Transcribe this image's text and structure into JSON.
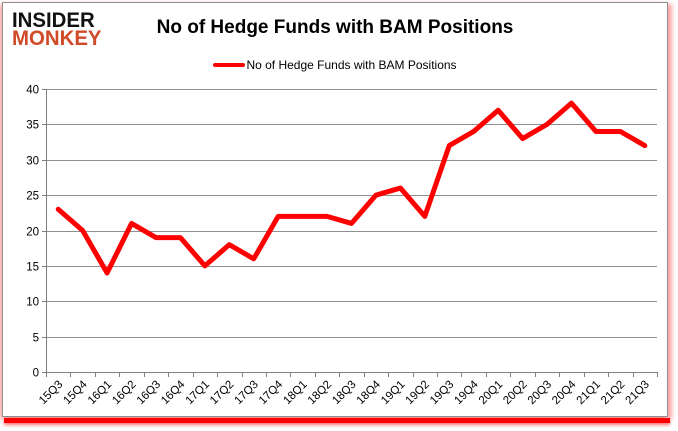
{
  "brand": {
    "line1": "INSIDER",
    "line2": "MONKEY",
    "line2_color": "#d04a28"
  },
  "header": {
    "title": "No of Hedge Funds with BAM Positions"
  },
  "legend": {
    "label": "No of Hedge Funds with BAM Positions",
    "line_color": "#ff0000"
  },
  "chart_data": {
    "type": "line",
    "title": "No of Hedge Funds with BAM Positions",
    "categories": [
      "15Q3",
      "15Q4",
      "16Q1",
      "16Q2",
      "16Q3",
      "16Q4",
      "17Q1",
      "17Q2",
      "17Q3",
      "17Q4",
      "18Q1",
      "18Q2",
      "18Q3",
      "18Q4",
      "19Q1",
      "19Q2",
      "19Q3",
      "19Q4",
      "20Q1",
      "20Q2",
      "20Q3",
      "20Q4",
      "21Q1",
      "21Q2",
      "21Q3"
    ],
    "series": [
      {
        "name": "No of Hedge Funds with BAM Positions",
        "color": "#ff0000",
        "values": [
          23,
          20,
          14,
          21,
          19,
          19,
          15,
          18,
          16,
          22,
          22,
          22,
          21,
          25,
          26,
          22,
          32,
          34,
          37,
          33,
          35,
          38,
          34,
          34,
          32
        ]
      }
    ],
    "xlabel": "",
    "ylabel": "",
    "ylim": [
      0,
      40
    ],
    "ytick_step": 5,
    "y_ticks": [
      0,
      5,
      10,
      15,
      20,
      25,
      30,
      35,
      40
    ],
    "grid": true,
    "legend_position": "top",
    "x_tick_rotation_deg": 45
  },
  "style": {
    "grid_color": "#8f8f8f",
    "axis_color": "#808080",
    "tick_label_color": "#000000",
    "accent_red": "#ff0000"
  }
}
